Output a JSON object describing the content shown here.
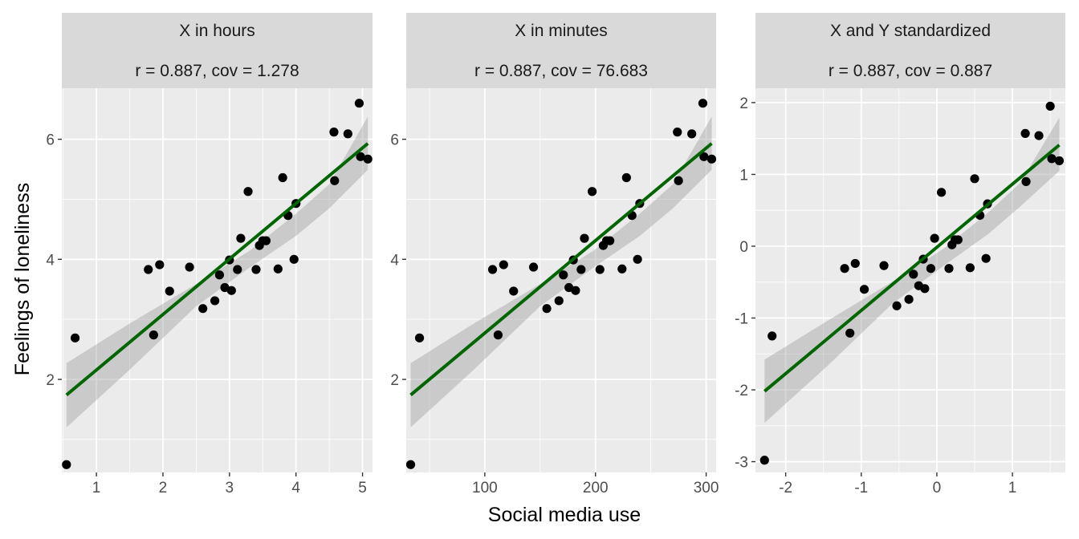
{
  "figure": {
    "xlabel": "Social media use",
    "ylabel": "Feelings of loneliness",
    "colors": {
      "panel_bg": "#ebebeb",
      "strip_bg": "#d9d9d9",
      "grid": "#ffffff",
      "points": "#000000",
      "fit_line": "#006400",
      "ribbon": "#999999"
    }
  },
  "chart_data": [
    {
      "type": "scatter",
      "facet": "hours",
      "title": "X in hours",
      "subtitle": "r = 0.887, cov = 1.278",
      "xlim": [
        0.48,
        5.15
      ],
      "ylim": [
        0.45,
        6.85
      ],
      "x_ticks": [
        1,
        2,
        3,
        4,
        5
      ],
      "y_ticks": [
        2,
        4,
        6
      ],
      "x": [
        0.55,
        0.68,
        1.78,
        1.86,
        1.95,
        2.1,
        2.4,
        2.6,
        2.78,
        2.85,
        2.93,
        3.0,
        3.03,
        3.12,
        3.17,
        3.28,
        3.4,
        3.45,
        3.5,
        3.55,
        3.73,
        3.8,
        3.88,
        3.97,
        4.0,
        4.57,
        4.58,
        4.78,
        4.95,
        4.97,
        5.08
      ],
      "y": [
        0.58,
        2.69,
        3.83,
        2.74,
        3.91,
        3.47,
        3.87,
        3.18,
        3.31,
        3.74,
        3.53,
        3.99,
        3.48,
        3.83,
        4.35,
        5.13,
        3.83,
        4.23,
        4.31,
        4.31,
        3.84,
        5.36,
        4.73,
        4.0,
        4.93,
        6.12,
        5.31,
        6.09,
        6.6,
        5.71,
        5.67
      ],
      "fit": {
        "x": [
          0.55,
          5.08
        ],
        "y": [
          1.74,
          5.93
        ]
      },
      "ci_upper": [
        {
          "x": 0.55,
          "y": 2.27
        },
        {
          "x": 1.5,
          "y": 2.93
        },
        {
          "x": 2.5,
          "y": 3.59
        },
        {
          "x": 3.3,
          "y": 4.14
        },
        {
          "x": 4.0,
          "y": 4.76
        },
        {
          "x": 4.5,
          "y": 5.25
        },
        {
          "x": 5.08,
          "y": 6.38
        }
      ],
      "ci_lower": [
        {
          "x": 0.55,
          "y": 1.2
        },
        {
          "x": 1.5,
          "y": 2.16
        },
        {
          "x": 2.5,
          "y": 3.22
        },
        {
          "x": 3.3,
          "y": 3.86
        },
        {
          "x": 4.0,
          "y": 4.39
        },
        {
          "x": 4.5,
          "y": 4.85
        },
        {
          "x": 5.08,
          "y": 5.49
        }
      ]
    },
    {
      "type": "scatter",
      "facet": "minutes",
      "title": "X in minutes",
      "subtitle": "r = 0.887, cov = 76.683",
      "xlim": [
        29,
        309
      ],
      "ylim": [
        0.45,
        6.85
      ],
      "x_ticks": [
        100,
        200,
        300
      ],
      "y_ticks": [
        2,
        4,
        6
      ],
      "x": [
        33,
        41,
        107,
        112,
        117,
        126,
        144,
        156,
        167,
        171,
        176,
        180,
        182,
        187,
        190,
        197,
        204,
        207,
        210,
        213,
        224,
        228,
        233,
        238,
        240,
        274,
        275,
        287,
        297,
        298,
        305
      ],
      "y": [
        0.58,
        2.69,
        3.83,
        2.74,
        3.91,
        3.47,
        3.87,
        3.18,
        3.31,
        3.74,
        3.53,
        3.99,
        3.48,
        3.83,
        4.35,
        5.13,
        3.83,
        4.23,
        4.31,
        4.31,
        3.84,
        5.36,
        4.73,
        4.0,
        4.93,
        6.12,
        5.31,
        6.09,
        6.6,
        5.71,
        5.67
      ],
      "fit": {
        "x": [
          33,
          305
        ],
        "y": [
          1.74,
          5.93
        ]
      },
      "ci_upper": [
        {
          "x": 33,
          "y": 2.27
        },
        {
          "x": 90,
          "y": 2.93
        },
        {
          "x": 150,
          "y": 3.59
        },
        {
          "x": 198,
          "y": 4.14
        },
        {
          "x": 240,
          "y": 4.76
        },
        {
          "x": 270,
          "y": 5.25
        },
        {
          "x": 305,
          "y": 6.38
        }
      ],
      "ci_lower": [
        {
          "x": 33,
          "y": 1.2
        },
        {
          "x": 90,
          "y": 2.16
        },
        {
          "x": 150,
          "y": 3.22
        },
        {
          "x": 198,
          "y": 3.86
        },
        {
          "x": 240,
          "y": 4.39
        },
        {
          "x": 270,
          "y": 4.85
        },
        {
          "x": 305,
          "y": 5.49
        }
      ]
    },
    {
      "type": "scatter",
      "facet": "standardized",
      "title": "X and Y standardized",
      "subtitle": "r = 0.887, cov = 0.887",
      "xlim": [
        -2.4,
        1.7
      ],
      "ylim": [
        -3.15,
        2.2
      ],
      "x_ticks": [
        -2,
        -1,
        0,
        1
      ],
      "y_ticks": [
        -3,
        -2,
        -1,
        0,
        1,
        2
      ],
      "x": [
        -2.28,
        -2.18,
        -1.22,
        -1.15,
        -1.08,
        -0.96,
        -0.7,
        -0.53,
        -0.37,
        -0.31,
        -0.24,
        -0.18,
        -0.16,
        -0.08,
        -0.03,
        0.06,
        0.16,
        0.2,
        0.24,
        0.28,
        0.44,
        0.5,
        0.57,
        0.65,
        0.67,
        1.17,
        1.18,
        1.35,
        1.5,
        1.52,
        1.62
      ],
      "y": [
        -2.98,
        -1.25,
        -0.31,
        -1.21,
        -0.24,
        -0.6,
        -0.27,
        -0.83,
        -0.74,
        -0.39,
        -0.55,
        -0.18,
        -0.59,
        -0.31,
        0.11,
        0.75,
        -0.31,
        0.02,
        0.09,
        0.09,
        -0.3,
        0.94,
        0.43,
        -0.17,
        0.59,
        1.57,
        0.9,
        1.54,
        1.95,
        1.22,
        1.19
      ],
      "fit": {
        "x": [
          -2.28,
          1.62
        ],
        "y": [
          -2.02,
          1.41
        ]
      },
      "ci_upper": [
        {
          "x": -2.28,
          "y": -1.58
        },
        {
          "x": -1.45,
          "y": -1.04
        },
        {
          "x": -0.6,
          "y": -0.5
        },
        {
          "x": 0.08,
          "y": -0.04
        },
        {
          "x": 0.68,
          "y": 0.47
        },
        {
          "x": 1.1,
          "y": 0.88
        },
        {
          "x": 1.62,
          "y": 1.79
        }
      ],
      "ci_lower": [
        {
          "x": -2.28,
          "y": -2.46
        },
        {
          "x": -1.45,
          "y": -1.67
        },
        {
          "x": -0.6,
          "y": -0.81
        },
        {
          "x": 0.08,
          "y": -0.28
        },
        {
          "x": 0.68,
          "y": 0.17
        },
        {
          "x": 1.1,
          "y": 0.55
        },
        {
          "x": 1.62,
          "y": 1.05
        }
      ]
    }
  ]
}
